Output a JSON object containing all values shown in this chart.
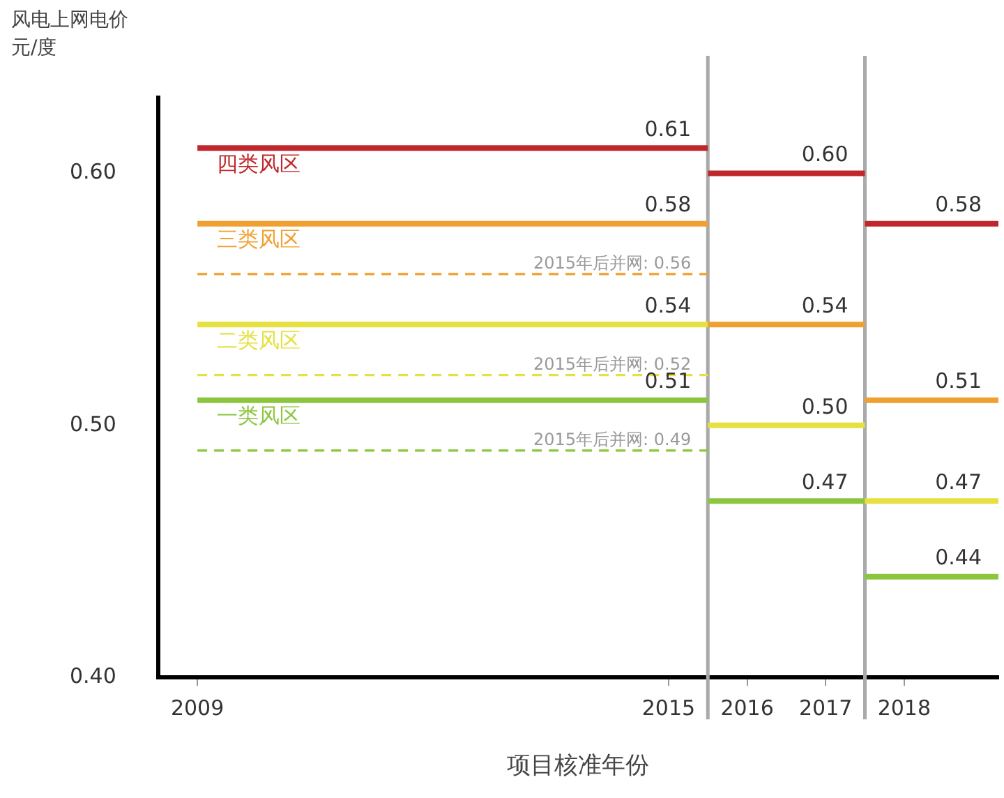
{
  "chart_data": {
    "type": "line",
    "ylabel": "风电上网电价",
    "annotations": [
      "元/度"
    ],
    "xlabel": "项目核准年份",
    "xlim": [
      2008.5,
      2019.2
    ],
    "xticks": [
      2009,
      2015,
      {
        "value": 2015.5,
        "label": null
      },
      2016,
      2017,
      {
        "value": 2017.5,
        "label": null
      },
      2018
    ],
    "ylim": [
      0.4,
      0.63
    ],
    "yticks": [
      {
        "value": 0.4,
        "label": "0.40"
      },
      {
        "value": 0.5,
        "label": "0.50"
      },
      {
        "value": 0.6,
        "label": "0.60"
      }
    ],
    "grid": false,
    "legend": false,
    "marker": "none",
    "ref_lines": [
      {
        "axis": "x",
        "value": 2015.5,
        "color": "#aaaaaa"
      },
      {
        "axis": "x",
        "value": 2017.5,
        "color": "#aaaaaa"
      }
    ],
    "series": [
      {
        "name": "四类风区",
        "color": "#c0272d",
        "x": [
          2009,
          2015.5,
          2015.5,
          2017.5,
          2017.5,
          2019.2
        ],
        "values": [
          0.61,
          0.61,
          0.6,
          0.6,
          0.58,
          0.58
        ],
        "value_labels": [
          null,
          "0.61",
          null,
          "0.60",
          null,
          "0.58"
        ]
      },
      {
        "name": "三类风区",
        "color": "#f0a030",
        "x": [
          2009,
          2015.5,
          2015.5,
          2017.5,
          2017.5,
          2019.2
        ],
        "values": [
          0.58,
          0.58,
          0.54,
          0.54,
          0.51,
          0.51
        ],
        "value_labels": [
          null,
          "0.58",
          null,
          "0.54",
          null,
          "0.51"
        ]
      },
      {
        "name": "二类风区",
        "color": "#e6e040",
        "x": [
          2009,
          2015.5,
          2015.5,
          2017.5,
          2017.5,
          2019.2
        ],
        "values": [
          0.54,
          0.54,
          0.5,
          0.5,
          0.47,
          0.47
        ],
        "value_labels": [
          null,
          "0.54",
          null,
          "0.50",
          null,
          "0.47"
        ]
      },
      {
        "name": "一类风区",
        "color": "#8cc63f",
        "x": [
          2009,
          2015.5,
          2015.5,
          2017.5,
          2017.5,
          2019.2
        ],
        "values": [
          0.51,
          0.51,
          0.47,
          0.47,
          0.44,
          0.44
        ],
        "value_labels": [
          null,
          "0.51",
          null,
          "0.47",
          null,
          "0.44"
        ]
      },
      {
        "color": "#f0a030",
        "line_style": "dashed",
        "x": [
          2009,
          2015.5
        ],
        "values": [
          0.56,
          0.56
        ],
        "value_labels": [
          null,
          "2015年后并网: 0.56"
        ]
      },
      {
        "color": "#e6e040",
        "line_style": "dashed",
        "x": [
          2009,
          2015.5
        ],
        "values": [
          0.52,
          0.52
        ],
        "value_labels": [
          null,
          "2015年后并网: 0.52"
        ]
      },
      {
        "color": "#8cc63f",
        "line_style": "dashed",
        "x": [
          2009,
          2015.5
        ],
        "values": [
          0.49,
          0.49
        ],
        "value_labels": [
          null,
          "2015年后并网: 0.49"
        ]
      }
    ]
  }
}
